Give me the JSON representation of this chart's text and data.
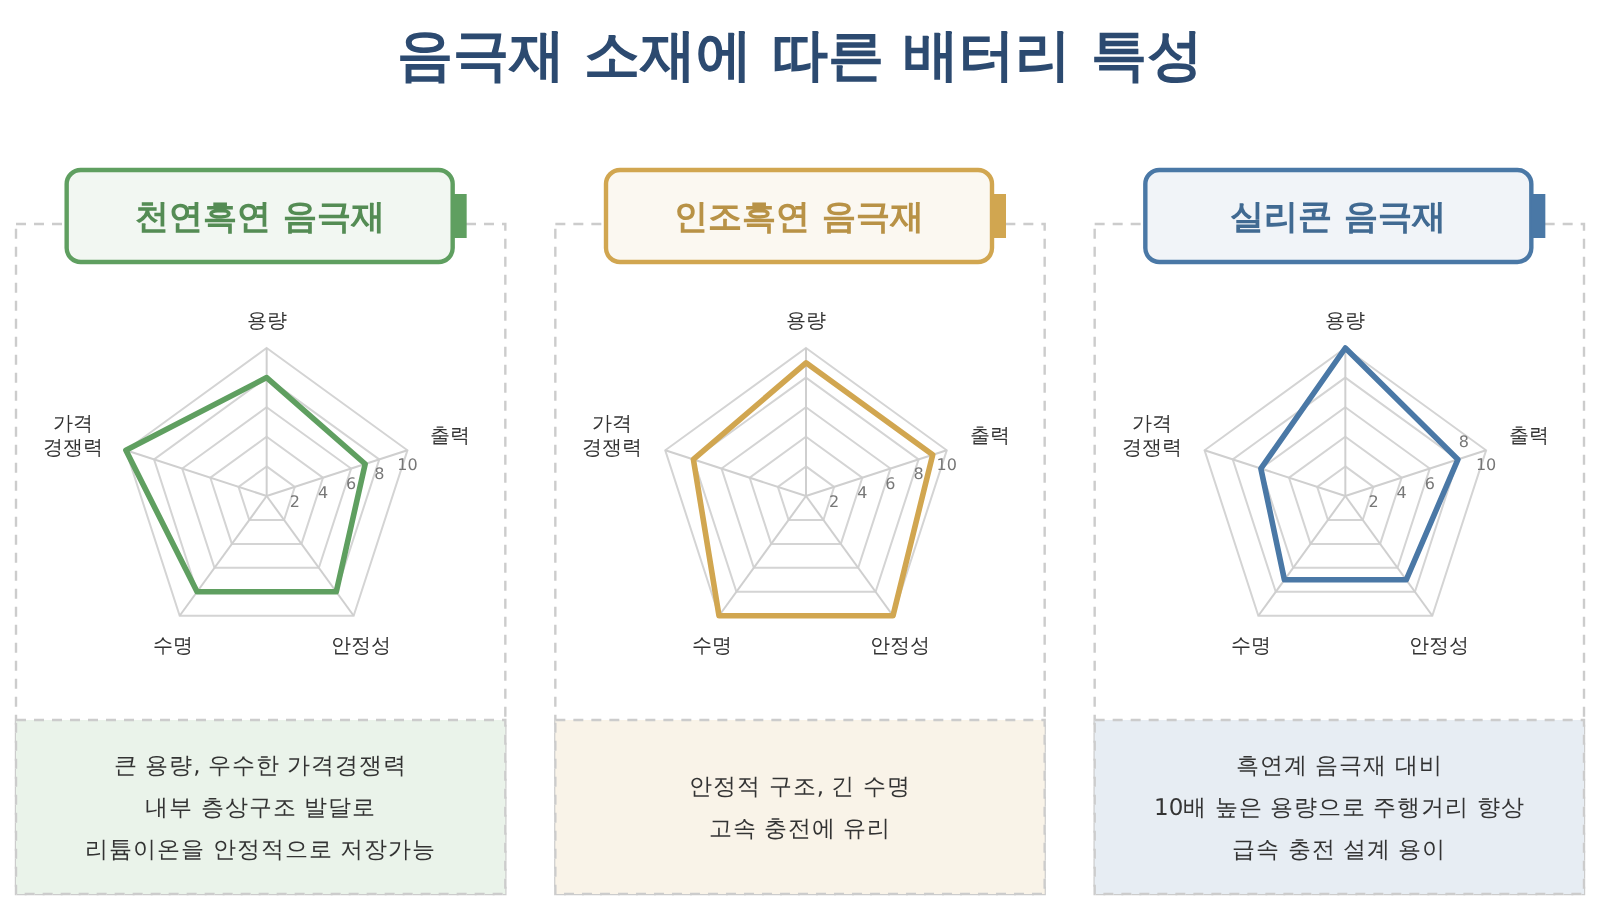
{
  "chart_data": [
    {
      "type": "other",
      "title": "음극재 소재에 따른 배터리 특성"
    },
    {
      "type": "radar",
      "title": "천연흑연 음극재",
      "categories": [
        "용량",
        "출력",
        "안정성",
        "수명",
        "가격 경쟁력"
      ],
      "series": [
        {
          "color": "#5f9f60",
          "values": [
            8,
            7,
            8,
            8,
            10
          ]
        }
      ],
      "ylim": [
        0,
        10
      ],
      "yticks": [
        2,
        4,
        6,
        8,
        10
      ],
      "grid": true,
      "annotations": [
        "큰 용량, 우수한 가격경쟁력",
        "내부 층상구조 발달로",
        "리튬이온을 안정적으로 저장가능"
      ]
    },
    {
      "type": "radar",
      "title": "인조흑연 음극재",
      "categories": [
        "용량",
        "출력",
        "안정성",
        "수명",
        "가격 경쟁력"
      ],
      "series": [
        {
          "color": "#d1a650",
          "values": [
            9,
            9,
            10,
            10,
            8
          ]
        }
      ],
      "ylim": [
        0,
        10
      ],
      "yticks": [
        2,
        4,
        6,
        8,
        10
      ],
      "grid": true,
      "annotations": [
        "안정적 구조, 긴 수명",
        "고속 충전에 유리"
      ]
    },
    {
      "type": "radar",
      "title": "실리콘 음극재",
      "categories": [
        "용량",
        "출력",
        "안정성",
        "수명",
        "가격 경쟁력"
      ],
      "series": [
        {
          "color": "#4a78a6",
          "values": [
            10,
            8,
            7,
            7,
            6
          ]
        }
      ],
      "ylim": [
        0,
        10
      ],
      "yticks": [
        2,
        4,
        6,
        8,
        10
      ],
      "grid": true,
      "annotations": [
        "흑연계 음극재 대비",
        "10배 높은 용량으로 주행거리 향상",
        "급속 충전 설계 용이"
      ]
    }
  ]
}
